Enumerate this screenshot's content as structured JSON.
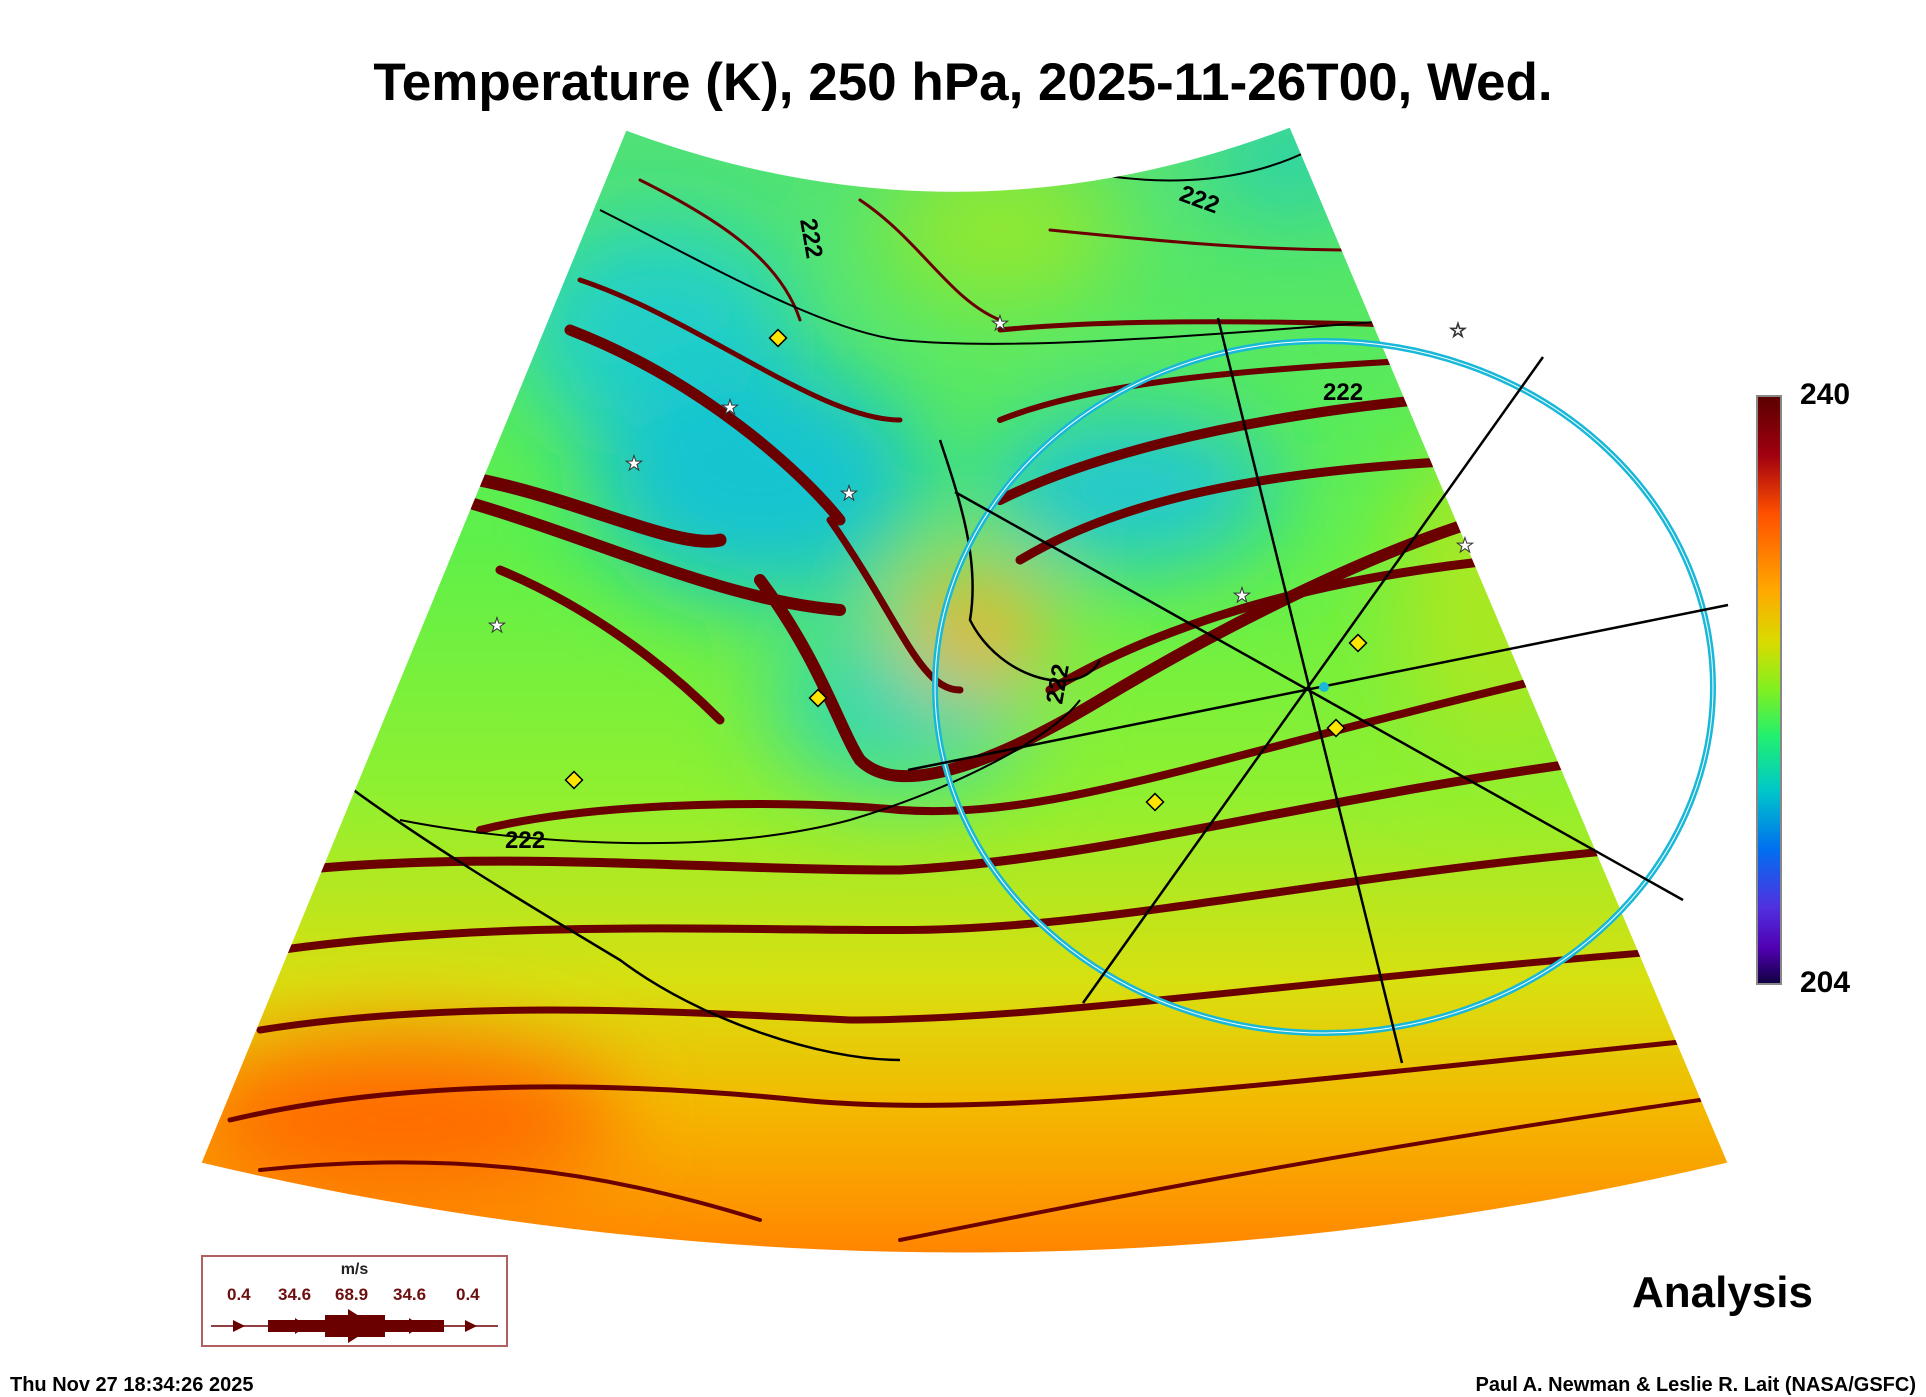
{
  "title": "Temperature (K), 250 hPa, 2025-11-26T00, Wed.",
  "colorbar": {
    "max_label": "240",
    "min_label": "204",
    "min": 204,
    "max": 240
  },
  "contour_label": "222",
  "legend": {
    "unit": "m/s",
    "values": [
      "0.4",
      "34.6",
      "68.9",
      "34.6",
      "0.4"
    ]
  },
  "product_label": "Analysis",
  "footer": {
    "timestamp": "Thu Nov 27 18:34:26 2025",
    "credit": "Paul A. Newman & Leslie R. Lait (NASA/GSFC)"
  },
  "colors": {
    "streamline": "#6b0000",
    "circle": "#19b8d8",
    "marker": "#ffe600"
  }
}
